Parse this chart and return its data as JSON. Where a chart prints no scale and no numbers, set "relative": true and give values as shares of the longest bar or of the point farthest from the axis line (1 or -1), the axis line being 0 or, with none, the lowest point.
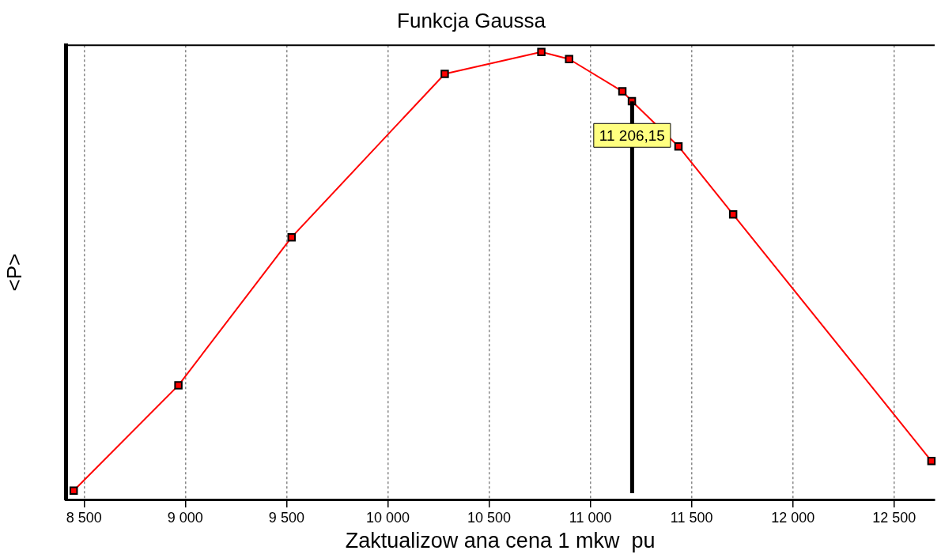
{
  "chart_data": {
    "type": "line",
    "title": "Funkcja Gaussa",
    "xlabel": "Zaktualizow ana cena 1 mkw  pu",
    "ylabel": "<P>",
    "relative": true,
    "xlim": [
      8410,
      12700
    ],
    "xticks": [
      {
        "value": 8500,
        "label": "8 500"
      },
      {
        "value": 9000,
        "label": "9 000"
      },
      {
        "value": 9500,
        "label": "9 500"
      },
      {
        "value": 10000,
        "label": "10 000"
      },
      {
        "value": 10500,
        "label": "10 500"
      },
      {
        "value": 11000,
        "label": "11 000"
      },
      {
        "value": 11500,
        "label": "11 500"
      },
      {
        "value": 12000,
        "label": "12 000"
      },
      {
        "value": 12500,
        "label": "12 500"
      }
    ],
    "series": [
      {
        "color": "#ff0000",
        "x": [
          8449,
          8966,
          9525,
          10281,
          10758,
          10895,
          11158,
          11205,
          11435,
          11705,
          12684
        ],
        "values": [
          0.02,
          0.255,
          0.586,
          0.951,
          1.0,
          0.984,
          0.912,
          0.89,
          0.789,
          0.637,
          0.086
        ]
      }
    ],
    "ref_lines": [
      {
        "axis": "x",
        "value": 11206.15,
        "label": "11 206,15",
        "color": "#000000"
      }
    ],
    "grid": "x",
    "legend": false,
    "marker": "square",
    "line_style": "solid"
  }
}
